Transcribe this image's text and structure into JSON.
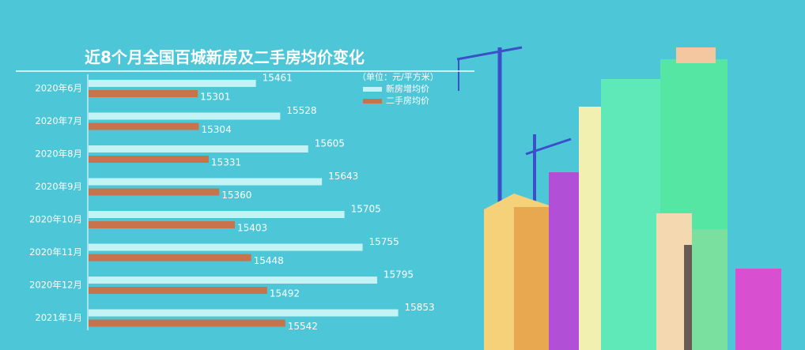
{
  "chart_data": {
    "type": "barh",
    "title": "近8个月全国百城新房及二手房均价变化",
    "unit_note": "（单位：元/平方米）",
    "categories": [
      "2020年6月",
      "2020年7月",
      "2020年8月",
      "2020年9月",
      "2020年10月",
      "2020年11月",
      "2020年12月",
      "2021年1月"
    ],
    "series": [
      {
        "name": "新房增均价",
        "color": "#c4f3f6",
        "values": [
          15461,
          15528,
          15605,
          15643,
          15705,
          15755,
          15795,
          15853
        ]
      },
      {
        "name": "二手房均价",
        "color": "#c8734b",
        "values": [
          15301,
          15304,
          15331,
          15360,
          15403,
          15448,
          15492,
          15542
        ]
      }
    ],
    "xlim": [
      15000,
      16000
    ]
  }
}
